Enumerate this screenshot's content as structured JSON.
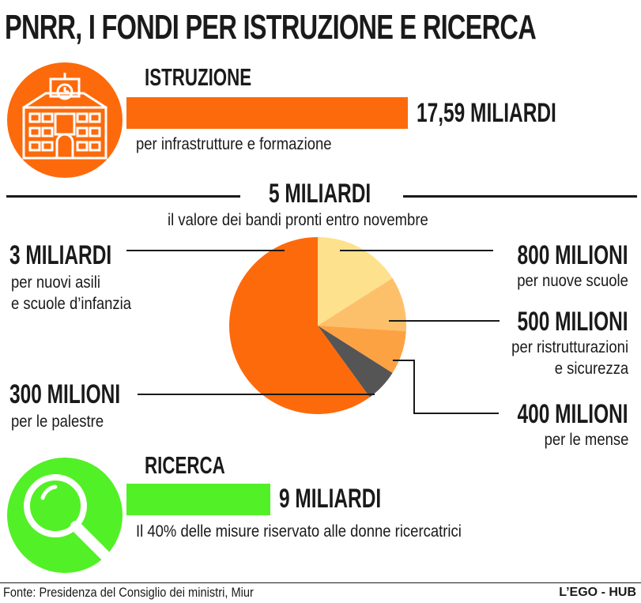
{
  "title": "PNRR, I FONDI PER ISTRUZIONE E RICERCA",
  "colors": {
    "orange": "#fd6a0b",
    "green": "#52f026",
    "dark": "#555555",
    "light1": "#fde18c",
    "light2": "#fdc06a",
    "light3": "#fda243"
  },
  "istruzione": {
    "icon": "school-building-icon",
    "heading": "ISTRUZIONE",
    "amount": "17,59 MILIARDI",
    "desc": "per infrastrutture e formazione"
  },
  "bandi": {
    "amount": "5 MILIARDI",
    "desc": "il valore dei bandi pronti entro novembre"
  },
  "chart_data": {
    "type": "pie",
    "unit": "milioni",
    "slices": [
      {
        "amount": "800 MILIONI",
        "label": "per nuove scuole",
        "value": 800,
        "color": "#fde18c"
      },
      {
        "amount": "500 MILIONI",
        "label": "per ristrutturazioni e sicurezza",
        "value": 500,
        "color": "#fdc06a"
      },
      {
        "amount": "400 MILIONI",
        "label": "per le mense",
        "value": 400,
        "color": "#fda243"
      },
      {
        "amount": "300 MILIONI",
        "label": "per le palestre",
        "value": 300,
        "color": "#555555"
      },
      {
        "amount": "3 MILIARDI",
        "label": "per nuovi asili e scuole d’infanzia",
        "value": 3000,
        "color": "#fd6a0b"
      }
    ]
  },
  "labels": {
    "asili": {
      "amount": "3 MILIARDI",
      "line1": "per nuovi asili",
      "line2": "e scuole d’infanzia"
    },
    "palestre": {
      "amount": "300 MILIONI",
      "line1": "per le palestre"
    },
    "scuole": {
      "amount": "800 MILIONI",
      "line1": "per nuove scuole"
    },
    "ristrutt": {
      "amount": "500 MILIONI",
      "line1": "per ristrutturazioni",
      "line2": "e sicurezza"
    },
    "mense": {
      "amount": "400 MILIONI",
      "line1": "per le mense"
    }
  },
  "ricerca": {
    "icon": "magnifier-icon",
    "heading": "RICERCA",
    "amount": "9 MILIARDI",
    "desc": "Il 40% delle misure riservato alle donne ricercatrici"
  },
  "footer": {
    "source": "Fonte: Presidenza del Consiglio dei ministri, Miur",
    "brand": "L’EGO - HUB"
  }
}
